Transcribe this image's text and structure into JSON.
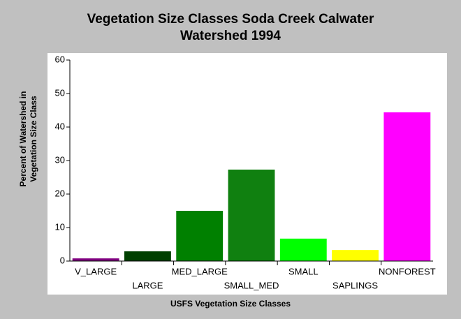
{
  "chart_data": {
    "type": "bar",
    "title": [
      "Vegetation Size Classes Soda Creek Calwater",
      "Watershed 1994"
    ],
    "y_label": [
      "Percent of Watershed in",
      "Vegetation Size Class"
    ],
    "x_label": "USFS Vegetation Size Classes",
    "categories": [
      "V_LARGE",
      "LARGE",
      "MED_LARGE",
      "SMALL_MED",
      "SMALL",
      "SAPLINGS",
      "NONFOREST"
    ],
    "values": [
      0.8,
      2.9,
      15,
      27.3,
      6.7,
      3.3,
      44.4
    ],
    "colors": [
      "#800080",
      "#004000",
      "#008000",
      "#108010",
      "#00ff00",
      "#ffff00",
      "#ff00ff"
    ],
    "ylim": [
      0,
      60
    ],
    "yticks": [
      0,
      10,
      20,
      30,
      40,
      50,
      60
    ],
    "grid": false
  }
}
